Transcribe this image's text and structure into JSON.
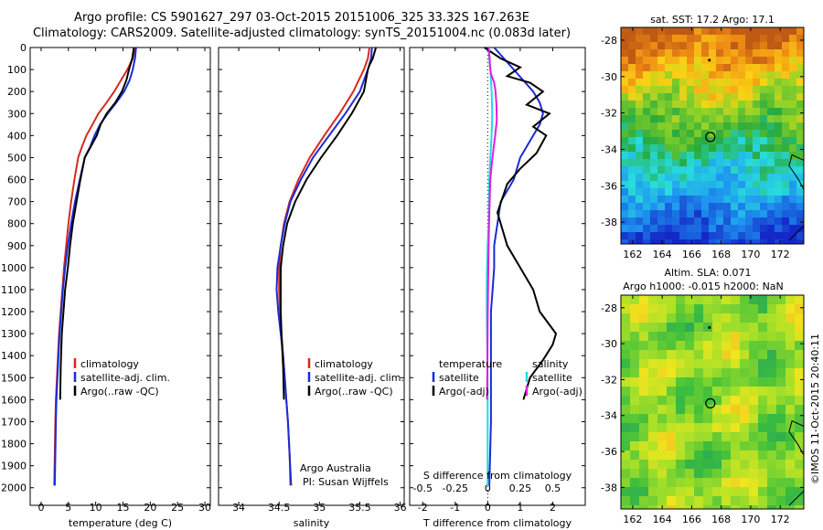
{
  "header": {
    "line1": "Argo profile: CS 5901627_297 03-Oct-2015 20151006_325 33.32S 167.263E",
    "line2": "Climatology: CARS2009. Satellite-adjusted climatology: synTS_20151004.nc (0.083d later)"
  },
  "footer": {
    "stamp": "©IMOS 11-Oct-2015 20:40:11"
  },
  "colors": {
    "climatology": "#d62a1e",
    "satellite": "#1a2bd6",
    "argo": "#000000",
    "magenta": "#e01ee0",
    "cyan": "#22d8e6"
  },
  "chart_data": [
    {
      "type": "line",
      "id": "temperature",
      "xlabel": "temperature (deg C)",
      "ylabel": "",
      "xlim": [
        -2,
        31
      ],
      "ylim": [
        2080,
        0
      ],
      "xticks": [
        0,
        5,
        10,
        15,
        20,
        25,
        30
      ],
      "yticks": [
        0,
        100,
        200,
        300,
        400,
        500,
        600,
        700,
        800,
        900,
        1000,
        1100,
        1200,
        1300,
        1400,
        1500,
        1600,
        1700,
        1800,
        1900,
        2000
      ],
      "legend": [
        "climatology",
        "satellite-adj. clim.",
        "Argo(..raw -QC)"
      ],
      "series": [
        {
          "name": "climatology",
          "color": "#d62a1e",
          "x": [
            17.2,
            16.8,
            15.8,
            14.6,
            13.4,
            12.0,
            10.5,
            9.4,
            8.3,
            7.5,
            6.8,
            6.1,
            5.5,
            5.0,
            4.6,
            4.2,
            3.9,
            3.6,
            3.3,
            3.1,
            2.9,
            2.7,
            2.6,
            2.5,
            2.4
          ],
          "y": [
            0,
            50,
            100,
            150,
            200,
            250,
            300,
            350,
            400,
            450,
            500,
            600,
            700,
            800,
            900,
            1000,
            1100,
            1200,
            1300,
            1400,
            1500,
            1600,
            1700,
            1850,
            1990
          ]
        },
        {
          "name": "satellite-adj. clim.",
          "color": "#1a2bd6",
          "x": [
            17.4,
            17.2,
            16.8,
            16.2,
            15.2,
            13.8,
            12.2,
            10.8,
            9.8,
            9.0,
            8.0,
            7.1,
            6.2,
            5.5,
            4.9,
            4.4,
            4.0,
            3.7,
            3.4,
            3.2,
            3.0,
            2.8,
            2.7,
            2.6,
            2.5
          ],
          "y": [
            0,
            50,
            100,
            150,
            200,
            250,
            300,
            350,
            400,
            450,
            500,
            600,
            700,
            800,
            900,
            1000,
            1100,
            1200,
            1300,
            1400,
            1500,
            1600,
            1700,
            1850,
            1990
          ]
        },
        {
          "name": "Argo(..raw -QC)",
          "color": "#000000",
          "x": [
            17.0,
            16.7,
            16.1,
            15.6,
            14.8,
            13.6,
            12.0,
            10.9,
            10.2,
            9.1,
            8.0,
            7.2,
            6.5,
            5.8,
            5.3,
            4.9,
            4.4,
            4.1,
            3.8,
            3.6,
            3.5
          ],
          "y": [
            0,
            50,
            100,
            150,
            200,
            250,
            300,
            350,
            400,
            450,
            500,
            600,
            700,
            800,
            900,
            1000,
            1100,
            1200,
            1300,
            1450,
            1600
          ]
        }
      ]
    },
    {
      "type": "line",
      "id": "salinity",
      "xlabel": "salinity",
      "ylabel": "",
      "xlim": [
        33.75,
        36.05
      ],
      "ylim": [
        2080,
        0
      ],
      "xticks": [
        34,
        34.5,
        35,
        35.5,
        36
      ],
      "legend": [
        "climatology",
        "satellite-adj. clim.",
        "Argo(..raw -QC)"
      ],
      "annotation": [
        "Argo Australia",
        "PI: Susan Wijffels"
      ],
      "series": [
        {
          "name": "climatology",
          "color": "#d62a1e",
          "x": [
            35.62,
            35.6,
            35.55,
            35.42,
            35.25,
            35.06,
            34.88,
            34.74,
            34.63,
            34.56,
            34.52,
            34.5,
            34.5,
            34.51,
            34.53,
            34.55,
            34.57,
            34.59,
            34.61,
            34.63,
            34.64
          ],
          "y": [
            0,
            50,
            100,
            200,
            300,
            400,
            500,
            600,
            700,
            800,
            900,
            1000,
            1100,
            1200,
            1300,
            1400,
            1500,
            1600,
            1700,
            1850,
            1990
          ]
        },
        {
          "name": "satellite-adj. clim.",
          "color": "#1a2bd6",
          "x": [
            35.65,
            35.64,
            35.6,
            35.5,
            35.32,
            35.12,
            34.92,
            34.77,
            34.64,
            34.57,
            34.52,
            34.48,
            34.47,
            34.49,
            34.52,
            34.55,
            34.57,
            34.59,
            34.61,
            34.63,
            34.65
          ],
          "y": [
            0,
            50,
            100,
            200,
            300,
            400,
            500,
            600,
            700,
            800,
            900,
            1000,
            1100,
            1200,
            1300,
            1400,
            1500,
            1600,
            1700,
            1850,
            1990
          ]
        },
        {
          "name": "Argo(..raw -QC)",
          "color": "#000000",
          "x": [
            35.7,
            35.66,
            35.62,
            35.6,
            35.55,
            35.4,
            35.22,
            35.02,
            34.84,
            34.7,
            34.6,
            34.55,
            34.52,
            34.52,
            34.52,
            34.53,
            34.55,
            34.56
          ],
          "y": [
            0,
            50,
            80,
            100,
            200,
            300,
            400,
            500,
            600,
            700,
            800,
            900,
            1000,
            1100,
            1200,
            1300,
            1450,
            1600
          ]
        }
      ]
    },
    {
      "type": "line",
      "id": "differences",
      "xlabel": "T difference from climatology",
      "xlabel_top": "S difference from climatology",
      "xlim": [
        -2.4,
        3.0
      ],
      "ylim": [
        2080,
        0
      ],
      "xticks": [
        -2,
        -1,
        0,
        1,
        2
      ],
      "xticks_salinity": [
        {
          "label": "-0.5",
          "value": -0.5
        },
        {
          "label": "-0.25",
          "value": -0.25
        },
        {
          "label": "0",
          "value": 0
        },
        {
          "label": "0.25",
          "value": 0.25
        },
        {
          "label": "0.5",
          "value": 0.5
        }
      ],
      "legend_left_title": "temperature",
      "legend_right_title": "salinity",
      "legend_left": [
        "satellite",
        "Argo(-adj)"
      ],
      "legend_right": [
        "satellite",
        "Argo(-adj)"
      ],
      "series": [
        {
          "name": "temperature satellite",
          "color": "#1a2bd6",
          "x": [
            0.2,
            0.5,
            0.8,
            1.1,
            1.4,
            1.6,
            1.7,
            1.6,
            1.4,
            1.2,
            1.0,
            0.8,
            0.6,
            0.4,
            0.3,
            0.2,
            0.2,
            0.15,
            0.1,
            0.1,
            0.1,
            0.1,
            0.1,
            0.05
          ],
          "y": [
            0,
            50,
            100,
            150,
            200,
            250,
            300,
            350,
            400,
            450,
            500,
            600,
            650,
            700,
            800,
            900,
            1000,
            1100,
            1200,
            1300,
            1400,
            1500,
            1700,
            1990
          ]
        },
        {
          "name": "temperature Argo(-adj)",
          "color": "#000000",
          "x": [
            -0.1,
            0.4,
            1.0,
            0.6,
            1.3,
            1.7,
            1.2,
            1.9,
            1.4,
            1.8,
            1.5,
            1.0,
            0.6,
            0.3,
            0.6,
            1.0,
            1.4,
            1.6,
            2.1,
            2.0,
            1.7,
            1.3,
            1.1
          ],
          "y": [
            0,
            50,
            90,
            130,
            160,
            200,
            260,
            300,
            360,
            400,
            480,
            550,
            620,
            750,
            900,
            1000,
            1100,
            1200,
            1300,
            1350,
            1420,
            1500,
            1600
          ]
        },
        {
          "name": "salinity satellite",
          "color": "#22d8e6",
          "x": [
            0.03,
            0.05,
            0.08,
            0.12,
            0.14,
            0.12,
            0.08,
            0.05,
            0.04,
            0.03,
            0.0,
            -0.02,
            -0.03,
            -0.03,
            -0.02,
            -0.01,
            0.0,
            0.0,
            0.0
          ],
          "y": [
            0,
            50,
            100,
            200,
            300,
            400,
            500,
            600,
            700,
            800,
            900,
            1000,
            1100,
            1200,
            1300,
            1400,
            1600,
            1800,
            1990
          ]
        },
        {
          "name": "salinity Argo(-adj)",
          "color": "#e01ee0",
          "x": [
            0.03,
            0.06,
            0.07,
            0.1,
            0.2,
            0.24,
            0.27,
            0.28,
            0.23,
            0.18,
            0.13,
            0.08,
            0.06,
            0.04,
            0.03,
            0.02,
            0.01,
            0.0,
            -0.01,
            -0.02
          ],
          "y": [
            0,
            50,
            80,
            120,
            160,
            200,
            260,
            330,
            400,
            460,
            520,
            600,
            700,
            800,
            900,
            1000,
            1100,
            1250,
            1450,
            1600
          ]
        }
      ]
    },
    {
      "type": "heatmap",
      "id": "sst-map",
      "title": "sat. SST: 17.2  Argo: 17.1",
      "xticks": [
        162,
        164,
        166,
        168,
        170,
        172
      ],
      "yticks": [
        -28,
        -30,
        -32,
        -34,
        -36,
        -38
      ],
      "xlim": [
        161.2,
        173.6
      ],
      "ylim": [
        -39.2,
        -27.3
      ],
      "float_position": {
        "lon": 167.263,
        "lat": -33.32
      }
    },
    {
      "type": "heatmap",
      "id": "sla-map",
      "title": "Altim. SLA: 0.071",
      "subtitle": "Argo h1000: -0.015  h2000: NaN",
      "xticks": [
        162,
        164,
        166,
        168,
        170,
        172
      ],
      "yticks": [
        -28,
        -30,
        -32,
        -34,
        -36,
        -38
      ],
      "xlim": [
        161.2,
        173.6
      ],
      "ylim": [
        -39.2,
        -27.3
      ],
      "float_position": {
        "lon": 167.263,
        "lat": -33.32
      }
    }
  ]
}
